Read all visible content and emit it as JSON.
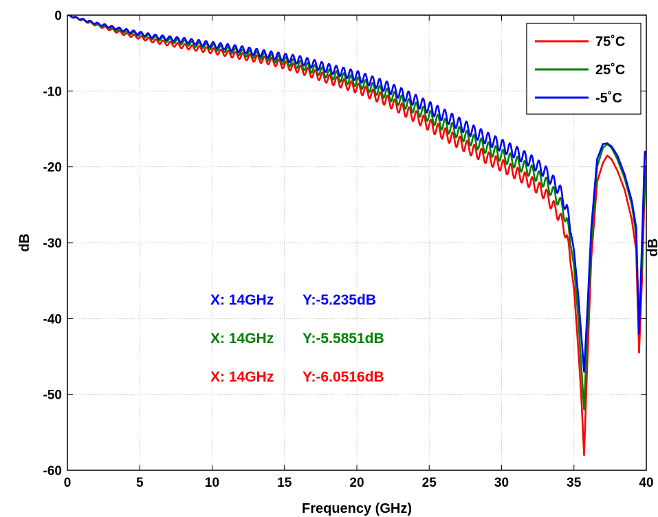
{
  "chart_data": {
    "type": "line",
    "title": "",
    "xlabel": "Frequency (GHz)",
    "ylabel": "dB",
    "xlim": [
      0,
      40
    ],
    "ylim": [
      -60,
      0
    ],
    "xticks": [
      0,
      5,
      10,
      15,
      20,
      25,
      30,
      35,
      40
    ],
    "yticks": [
      0,
      -10,
      -20,
      -30,
      -40,
      -50,
      -60
    ],
    "xtick_labels": [
      "0",
      "5",
      "10",
      "15",
      "20",
      "25",
      "30",
      "35",
      "40"
    ],
    "ytick_labels": [
      "0",
      "-10",
      "-20",
      "-30",
      "-40",
      "-50",
      "-60"
    ],
    "grid": true,
    "legend_position": "top-right",
    "series": [
      {
        "name": "75˚C",
        "color": "#ff0000",
        "x": [
          0,
          2,
          4,
          6,
          8,
          10,
          12,
          14,
          16,
          18,
          20,
          22,
          24,
          26,
          28,
          30,
          31,
          32,
          33,
          34,
          34.5,
          35,
          35.3,
          35.5,
          35.7,
          35.9,
          36.2,
          36.6,
          37,
          37.3,
          37.6,
          38,
          38.5,
          39,
          39.3,
          39.5,
          39.7,
          39.9,
          40
        ],
        "y": [
          0,
          -1.3,
          -2.5,
          -3.4,
          -4.1,
          -4.7,
          -5.4,
          -6.05,
          -7.1,
          -8.4,
          -9.6,
          -11.2,
          -13.3,
          -15.6,
          -17.8,
          -19.8,
          -20.8,
          -22,
          -23.5,
          -26.5,
          -29,
          -36,
          -44,
          -50,
          -58,
          -47,
          -32,
          -22,
          -19.5,
          -18.5,
          -19,
          -20.5,
          -23,
          -27,
          -31,
          -44.5,
          -35,
          -22,
          -21
        ]
      },
      {
        "name": "25˚C",
        "color": "#008000",
        "x": [
          0,
          2,
          4,
          6,
          8,
          10,
          12,
          14,
          16,
          18,
          20,
          22,
          24,
          26,
          28,
          30,
          31,
          32,
          33,
          34,
          34.5,
          35,
          35.3,
          35.5,
          35.7,
          35.9,
          36.2,
          36.6,
          37,
          37.3,
          37.6,
          38,
          38.5,
          39,
          39.3,
          39.5,
          39.7,
          39.9,
          40
        ],
        "y": [
          0,
          -1.2,
          -2.2,
          -3.0,
          -3.6,
          -4.2,
          -4.9,
          -5.59,
          -6.5,
          -7.7,
          -8.8,
          -10.3,
          -12.2,
          -14.4,
          -16.5,
          -18.5,
          -19.4,
          -20.5,
          -22,
          -24.5,
          -27,
          -33,
          -40,
          -46,
          -52,
          -43,
          -30,
          -20,
          -17.5,
          -17,
          -17.5,
          -19,
          -21.5,
          -25,
          -29,
          -41,
          -33,
          -20.5,
          -20
        ]
      },
      {
        "name": "-5˚C",
        "color": "#0000ff",
        "x": [
          0,
          2,
          4,
          6,
          8,
          10,
          12,
          14,
          16,
          18,
          20,
          22,
          24,
          26,
          28,
          30,
          31,
          32,
          33,
          34,
          34.5,
          35,
          35.3,
          35.5,
          35.7,
          35.9,
          36.2,
          36.6,
          37,
          37.3,
          37.6,
          38,
          38.5,
          39,
          39.3,
          39.5,
          39.7,
          39.9,
          40
        ],
        "y": [
          0,
          -1.1,
          -2.0,
          -2.8,
          -3.3,
          -3.9,
          -4.5,
          -5.24,
          -5.9,
          -7.0,
          -8.0,
          -9.4,
          -11.2,
          -13.2,
          -15.3,
          -17.2,
          -18.1,
          -19.2,
          -20.6,
          -23,
          -25.5,
          -31,
          -37,
          -42,
          -47,
          -40,
          -28,
          -19,
          -17,
          -16.9,
          -17.3,
          -18.5,
          -21,
          -24.5,
          -28,
          -42,
          -30,
          -17.5,
          -18.5
        ]
      }
    ],
    "annotations": [
      {
        "text_x": "X: 14GHz",
        "text_y": "Y:-5.235dB",
        "color": "#0000ff"
      },
      {
        "text_x": "X: 14GHz",
        "text_y": "Y:-5.5851dB",
        "color": "#008000"
      },
      {
        "text_x": "X: 14GHz",
        "text_y": "Y:-6.0516dB",
        "color": "#ff0000"
      }
    ],
    "right_axis_label": "dB"
  }
}
